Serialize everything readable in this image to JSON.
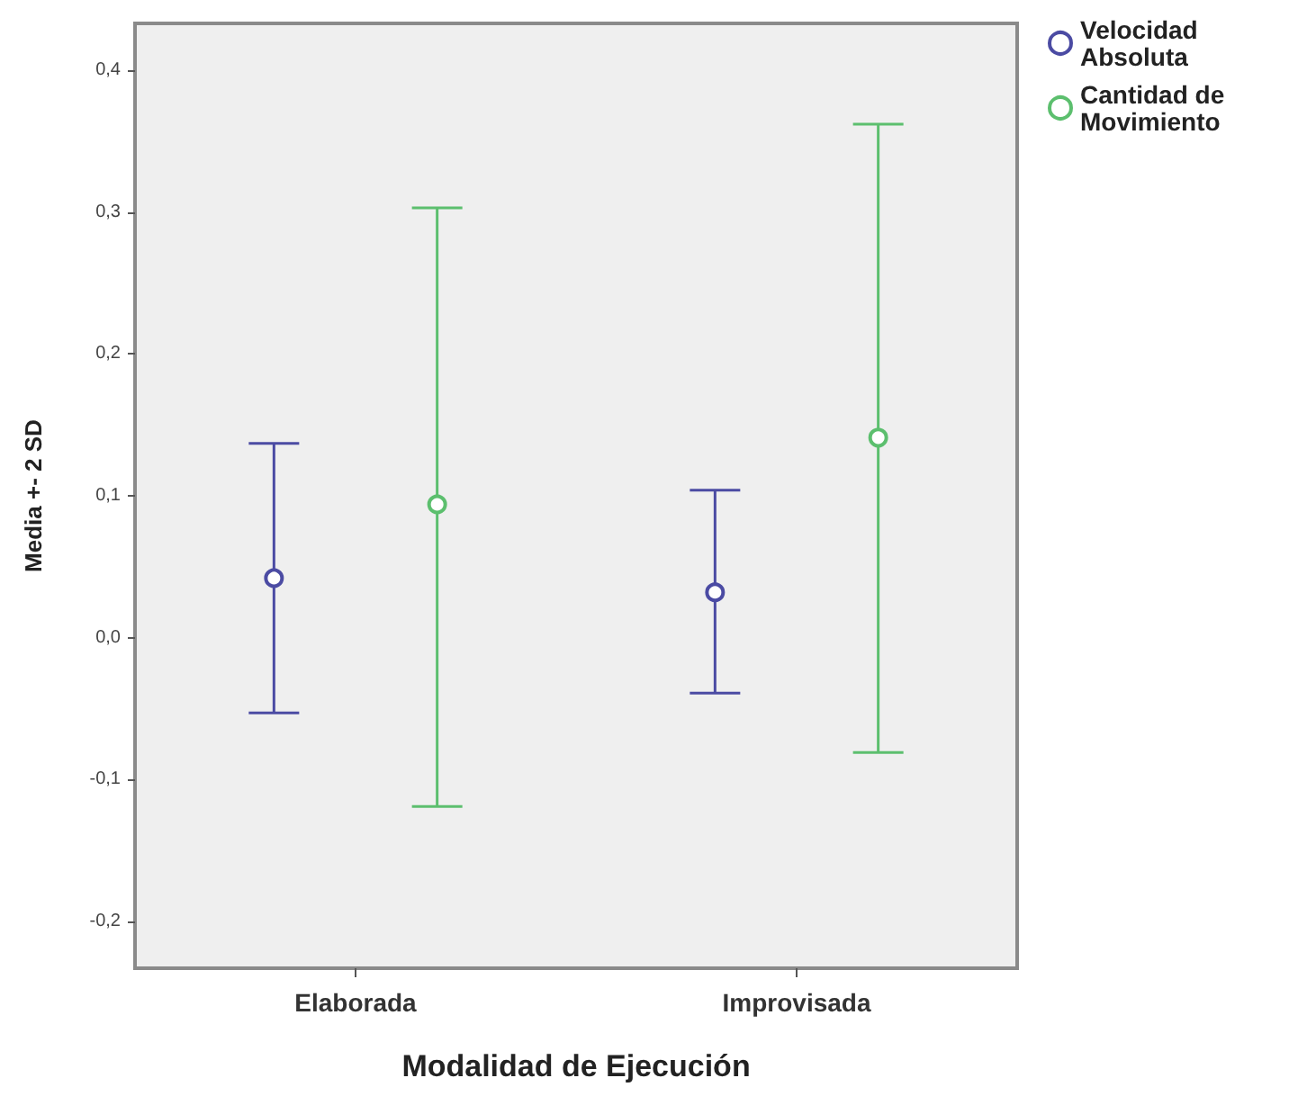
{
  "chart_data": {
    "type": "scatter",
    "xlabel": "Modalidad de Ejecución",
    "ylabel": "Media +- 2 SD",
    "categories": [
      "Elaborada",
      "Improvisada"
    ],
    "series": [
      {
        "name": "Velocidad Absoluta",
        "color": "#4b4ba3",
        "values": [
          0.042,
          0.032
        ],
        "errors": [
          [
            -0.053,
            0.137
          ],
          [
            -0.039,
            0.104
          ]
        ]
      },
      {
        "name": "Cantidad de Movimiento",
        "color": "#5cbf6e",
        "values": [
          0.094,
          0.141
        ],
        "errors": [
          [
            -0.119,
            0.303
          ],
          [
            -0.081,
            0.362
          ]
        ]
      }
    ],
    "ylim": [
      -0.233,
      0.433
    ],
    "yticks": [
      {
        "value": -0.2,
        "label": "-0,2"
      },
      {
        "value": -0.1,
        "label": "-0,1"
      },
      {
        "value": 0,
        "label": "0,0"
      },
      {
        "value": 0.1,
        "label": "0,1"
      },
      {
        "value": 0.2,
        "label": "0,2"
      },
      {
        "value": 0.3,
        "label": "0,3"
      },
      {
        "value": 0.4,
        "label": "0,4"
      }
    ],
    "marker": "circle",
    "legend": "top right",
    "grid": false
  }
}
